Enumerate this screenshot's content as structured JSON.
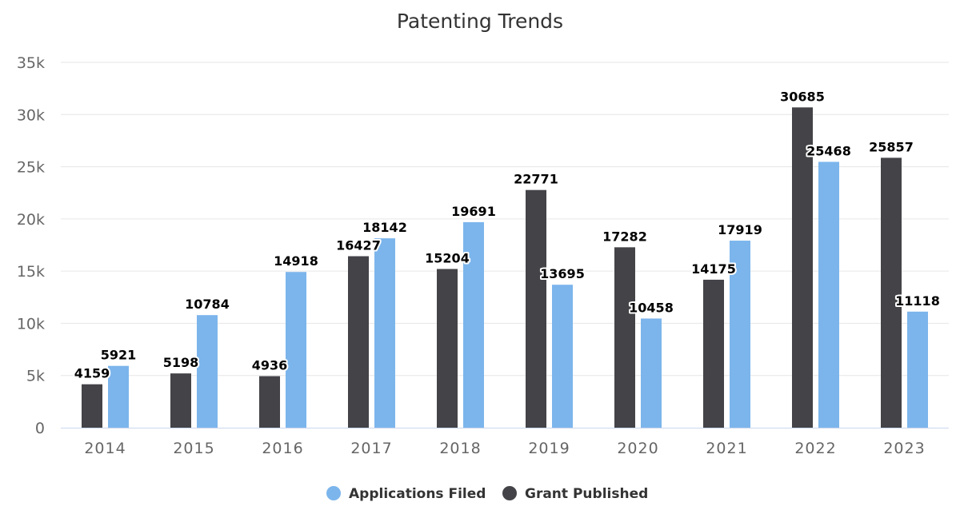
{
  "chart_data": {
    "type": "bar",
    "title": "Patenting Trends",
    "xlabel": "",
    "ylabel": "",
    "categories": [
      "2014",
      "2015",
      "2016",
      "2017",
      "2018",
      "2019",
      "2020",
      "2021",
      "2022",
      "2023"
    ],
    "series": [
      {
        "name": "Grant Published",
        "color": "#434348",
        "values": [
          4159,
          5198,
          4936,
          16427,
          15204,
          22771,
          17282,
          14175,
          30685,
          25857
        ]
      },
      {
        "name": "Applications Filed",
        "color": "#7cb5ec",
        "values": [
          5921,
          10784,
          14918,
          18142,
          19691,
          13695,
          10458,
          17919,
          25468,
          11118
        ]
      }
    ],
    "ylim": [
      0,
      35000
    ],
    "yticks": [
      {
        "value": 0,
        "label": "0"
      },
      {
        "value": 5000,
        "label": "5k"
      },
      {
        "value": 10000,
        "label": "10k"
      },
      {
        "value": 15000,
        "label": "15k"
      },
      {
        "value": 20000,
        "label": "20k"
      },
      {
        "value": 25000,
        "label": "25k"
      },
      {
        "value": 30000,
        "label": "30k"
      },
      {
        "value": 35000,
        "label": "35k"
      }
    ],
    "grid": true,
    "data_labels": true,
    "legend": {
      "position": "bottom-center",
      "items": [
        {
          "name": "Applications Filed",
          "color": "#7cb5ec"
        },
        {
          "name": "Grant Published",
          "color": "#434348"
        }
      ]
    }
  }
}
